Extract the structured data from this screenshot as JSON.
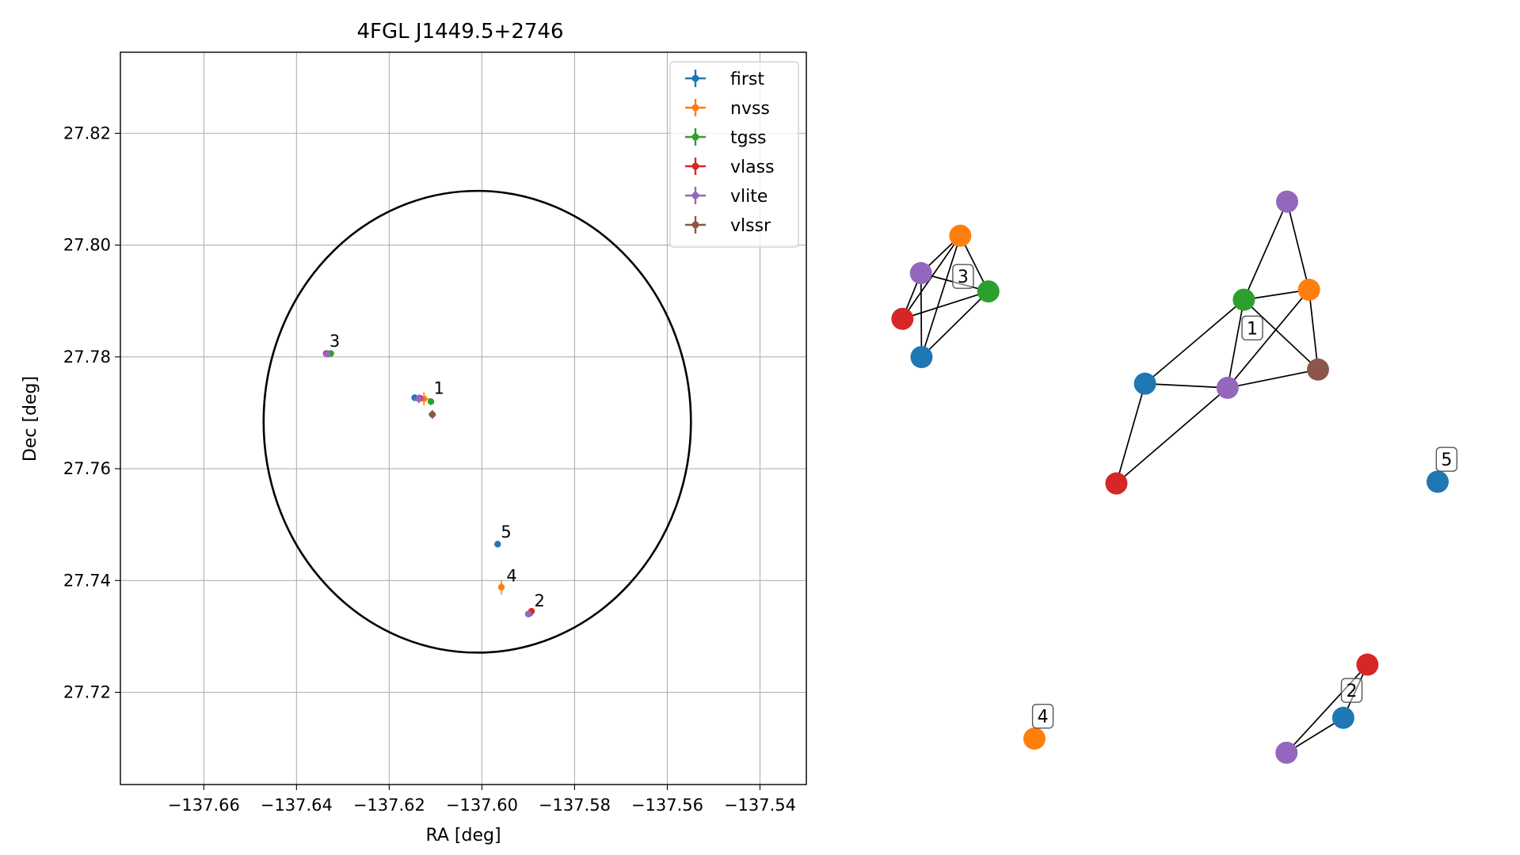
{
  "chart_data": [
    {
      "type": "scatter",
      "title": "4FGL J1449.5+2746",
      "xlabel": "RA [deg]",
      "ylabel": "Dec [deg]",
      "xlim": [
        -137.678,
        -137.53
      ],
      "ylim": [
        27.7035,
        27.8345
      ],
      "grid": true,
      "x_ticks": [
        -137.66,
        -137.64,
        -137.62,
        -137.6,
        -137.58,
        -137.56,
        -137.54
      ],
      "x_tick_labels": [
        "−137.66",
        "−137.64",
        "−137.62",
        "−137.60",
        "−137.58",
        "−137.56",
        "−137.54"
      ],
      "y_ticks": [
        27.72,
        27.74,
        27.76,
        27.78,
        27.8,
        27.82
      ],
      "y_tick_labels": [
        "27.72",
        "27.74",
        "27.76",
        "27.78",
        "27.80",
        "27.82"
      ],
      "legend": {
        "placement": "top-right",
        "entries": [
          "first",
          "nvss",
          "tgss",
          "vlass",
          "vlite",
          "vlssr"
        ]
      },
      "ellipse": {
        "center": [
          -137.601,
          27.7684
        ],
        "semi_axis_ra": 0.0461,
        "semi_axis_dec": 0.0413,
        "color": "#000000"
      },
      "series": [
        {
          "name": "first",
          "color": "#1f77b4",
          "points": [
            {
              "x": -137.6145,
              "y": 27.7727,
              "xerr": 0.0001,
              "yerr": 0.0001
            },
            {
              "x": -137.5897,
              "y": 27.7341,
              "xerr": 0.0001,
              "yerr": 0.0001
            },
            {
              "x": -137.6334,
              "y": 27.7806,
              "xerr": 0.0001,
              "yerr": 0.0001
            },
            {
              "x": -137.5966,
              "y": 27.7465,
              "xerr": 0.0001,
              "yerr": 0.0001
            }
          ]
        },
        {
          "name": "nvss",
          "color": "#ff7f0e",
          "points": [
            {
              "x": -137.6125,
              "y": 27.7725,
              "xerr": 0.0012,
              "yerr": 0.0012
            },
            {
              "x": -137.6332,
              "y": 27.7805,
              "xerr": 0.0006,
              "yerr": 0.0006
            },
            {
              "x": -137.5958,
              "y": 27.7388,
              "xerr": 0.0007,
              "yerr": 0.0013
            }
          ]
        },
        {
          "name": "tgss",
          "color": "#2ca02c",
          "points": [
            {
              "x": -137.611,
              "y": 27.772,
              "xerr": 0.0006,
              "yerr": 0.0006
            },
            {
              "x": -137.6326,
              "y": 27.7806,
              "xerr": 0.0004,
              "yerr": 0.0004
            }
          ]
        },
        {
          "name": "vlass",
          "color": "#d62728",
          "points": [
            {
              "x": -137.6134,
              "y": 27.7726,
              "xerr": 0.0002,
              "yerr": 0.0002
            },
            {
              "x": -137.5893,
              "y": 27.7345,
              "xerr": 0.0002,
              "yerr": 0.0002
            },
            {
              "x": -137.6336,
              "y": 27.7806,
              "xerr": 0.0002,
              "yerr": 0.0002
            }
          ]
        },
        {
          "name": "vlite",
          "color": "#9467bd",
          "points": [
            {
              "x": -137.6136,
              "y": 27.7725,
              "xerr": 0.0012,
              "yerr": 0.0008
            },
            {
              "x": -137.59,
              "y": 27.734,
              "xerr": 0.0006,
              "yerr": 0.0006
            },
            {
              "x": -137.6334,
              "y": 27.7805,
              "xerr": 0.0005,
              "yerr": 0.0005
            }
          ]
        },
        {
          "name": "vlssr",
          "color": "#8c564b",
          "points": [
            {
              "x": -137.6107,
              "y": 27.7697,
              "xerr": 0.0008,
              "yerr": 0.0008
            }
          ]
        }
      ],
      "annotations": [
        {
          "text": "1",
          "x": -137.6104,
          "y": 27.7734
        },
        {
          "text": "2",
          "x": -137.5887,
          "y": 27.7354
        },
        {
          "text": "3",
          "x": -137.6329,
          "y": 27.7818
        },
        {
          "text": "4",
          "x": -137.5947,
          "y": 27.7398
        },
        {
          "text": "5",
          "x": -137.5959,
          "y": 27.7477
        }
      ]
    },
    {
      "type": "network",
      "nodes": [
        {
          "id": "g1_vlite",
          "color": "#9467bd",
          "pos": [
            0.732,
            0.214
          ]
        },
        {
          "id": "g1_tgss",
          "color": "#2ca02c",
          "pos": [
            0.655,
            0.332
          ]
        },
        {
          "id": "g1_nvss",
          "color": "#ff7f0e",
          "pos": [
            0.771,
            0.32
          ]
        },
        {
          "id": "g1_first",
          "color": "#1f77b4",
          "pos": [
            0.479,
            0.433
          ]
        },
        {
          "id": "g1_vlite2",
          "color": "#9467bd",
          "pos": [
            0.626,
            0.438
          ]
        },
        {
          "id": "g1_vlssr",
          "color": "#8c564b",
          "pos": [
            0.787,
            0.416
          ]
        },
        {
          "id": "g1_vlass",
          "color": "#d62728",
          "pos": [
            0.428,
            0.553
          ]
        },
        {
          "id": "g3_nvss",
          "color": "#ff7f0e",
          "pos": [
            0.15,
            0.255
          ]
        },
        {
          "id": "g3_vlite",
          "color": "#9467bd",
          "pos": [
            0.08,
            0.3
          ]
        },
        {
          "id": "g3_tgss",
          "color": "#2ca02c",
          "pos": [
            0.2,
            0.322
          ]
        },
        {
          "id": "g3_vlass",
          "color": "#d62728",
          "pos": [
            0.047,
            0.355
          ]
        },
        {
          "id": "g3_first",
          "color": "#1f77b4",
          "pos": [
            0.081,
            0.401
          ]
        },
        {
          "id": "g5_first",
          "color": "#1f77b4",
          "pos": [
            1.0,
            0.551
          ]
        },
        {
          "id": "g4_nvss",
          "color": "#ff7f0e",
          "pos": [
            0.282,
            0.86
          ]
        },
        {
          "id": "g2_vlass",
          "color": "#d62728",
          "pos": [
            0.875,
            0.771
          ]
        },
        {
          "id": "g2_first",
          "color": "#1f77b4",
          "pos": [
            0.832,
            0.835
          ]
        },
        {
          "id": "g2_vlite",
          "color": "#9467bd",
          "pos": [
            0.731,
            0.877
          ]
        }
      ],
      "edges": [
        [
          "g1_vlite",
          "g1_tgss"
        ],
        [
          "g1_vlite",
          "g1_nvss"
        ],
        [
          "g1_tgss",
          "g1_nvss"
        ],
        [
          "g1_tgss",
          "g1_first"
        ],
        [
          "g1_tgss",
          "g1_vlite2"
        ],
        [
          "g1_tgss",
          "g1_vlssr"
        ],
        [
          "g1_nvss",
          "g1_vlite2"
        ],
        [
          "g1_nvss",
          "g1_vlssr"
        ],
        [
          "g1_first",
          "g1_vlite2"
        ],
        [
          "g1_first",
          "g1_vlass"
        ],
        [
          "g1_vlite2",
          "g1_vlssr"
        ],
        [
          "g1_vlite2",
          "g1_vlass"
        ],
        [
          "g3_nvss",
          "g3_vlite"
        ],
        [
          "g3_nvss",
          "g3_vlass"
        ],
        [
          "g3_nvss",
          "g3_tgss"
        ],
        [
          "g3_nvss",
          "g3_first"
        ],
        [
          "g3_vlite",
          "g3_tgss"
        ],
        [
          "g3_vlite",
          "g3_vlass"
        ],
        [
          "g3_vlite",
          "g3_first"
        ],
        [
          "g3_tgss",
          "g3_vlass"
        ],
        [
          "g3_tgss",
          "g3_first"
        ],
        [
          "g2_vlass",
          "g2_first"
        ],
        [
          "g2_vlass",
          "g2_vlite"
        ],
        [
          "g2_first",
          "g2_vlite"
        ]
      ],
      "labels": [
        {
          "text": "1",
          "pos": [
            0.67,
            0.366
          ]
        },
        {
          "text": "2",
          "pos": [
            0.847,
            0.802
          ]
        },
        {
          "text": "3",
          "pos": [
            0.155,
            0.304
          ]
        },
        {
          "text": "4",
          "pos": [
            0.297,
            0.833
          ]
        },
        {
          "text": "5",
          "pos": [
            1.016,
            0.524
          ]
        }
      ]
    }
  ]
}
